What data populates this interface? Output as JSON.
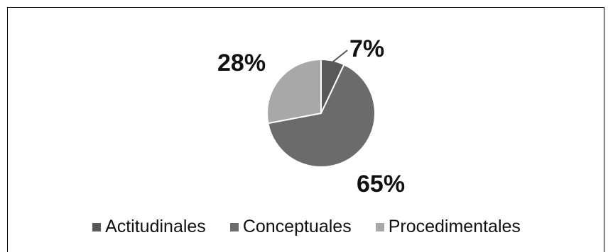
{
  "chart_data": {
    "type": "pie",
    "title": "",
    "categories": [
      "Actitudinales",
      "Conceptuales",
      "Procedimentales"
    ],
    "values": [
      7,
      65,
      28
    ],
    "labels": [
      "7%",
      "65%",
      "28%"
    ],
    "colors": [
      "#595959",
      "#6b6b6b",
      "#a8a8a8"
    ],
    "start_angle_deg": 0,
    "direction": "clockwise",
    "legend": "bottom",
    "grid": false
  }
}
